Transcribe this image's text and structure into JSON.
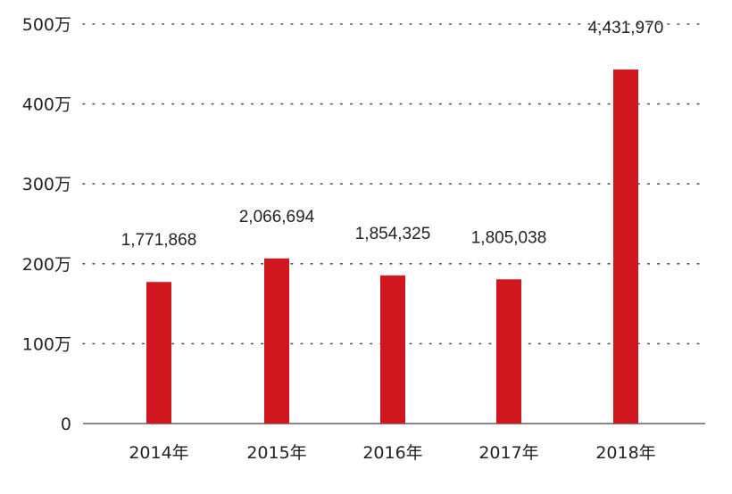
{
  "chart_data": {
    "type": "bar",
    "categories": [
      "2014年",
      "2015年",
      "2016年",
      "2017年",
      "2018年"
    ],
    "values": [
      1771868,
      2066694,
      1854325,
      1805038,
      4431970
    ],
    "data_labels": [
      "1,771,868",
      "2,066,694",
      "1,854,325",
      "1,805,038",
      "4,431,970"
    ],
    "yticks": [
      0,
      1000000,
      2000000,
      3000000,
      4000000,
      5000000
    ],
    "ytick_labels": [
      "0",
      "100万",
      "200万",
      "300万",
      "400万",
      "500万"
    ],
    "ylim": [
      0,
      5000000
    ],
    "bar_color": "#d0161e",
    "grid": true,
    "title": "",
    "xlabel": "",
    "ylabel": ""
  }
}
